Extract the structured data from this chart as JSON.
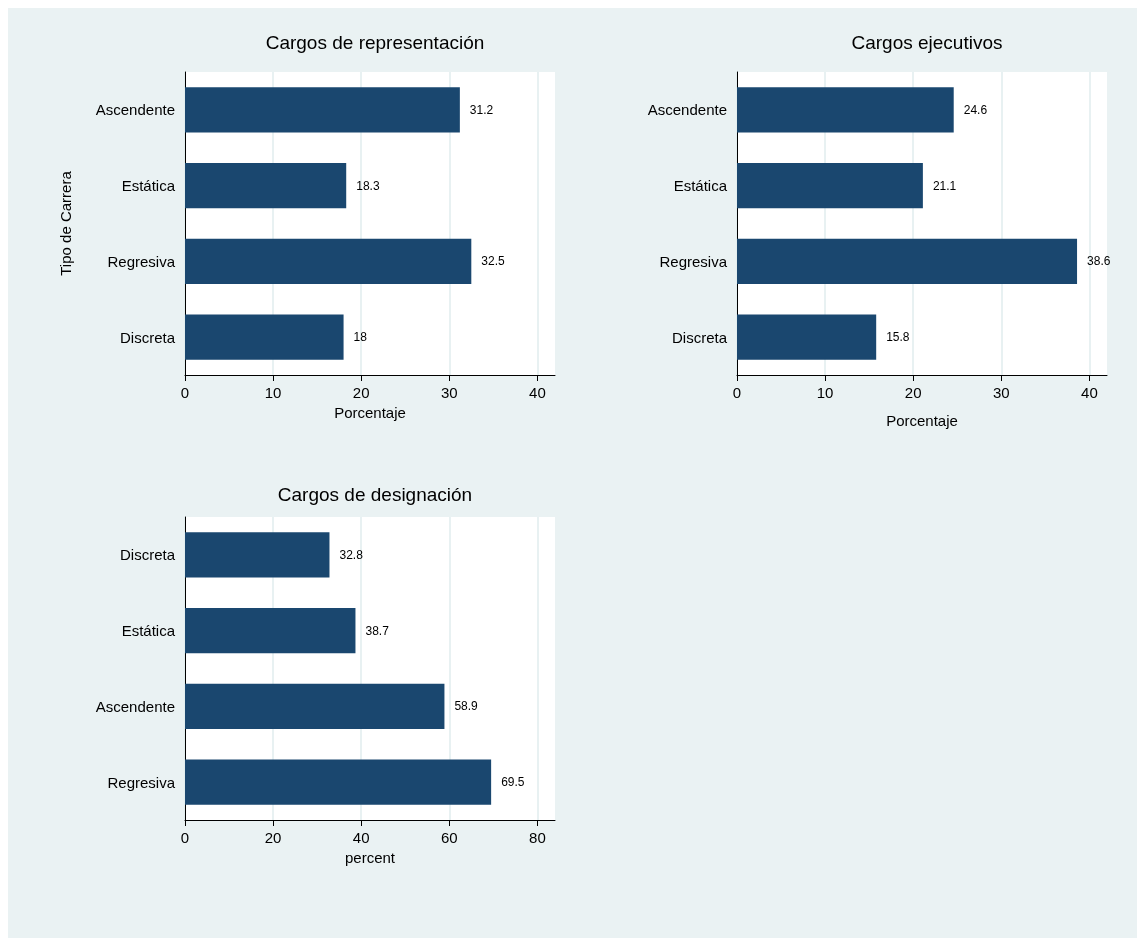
{
  "chart_data": [
    {
      "type": "bar",
      "orientation": "horizontal",
      "title": "Cargos de representación",
      "xlabel": "Porcentaje",
      "ylabel": "Tipo de Carrera",
      "categories": [
        "Ascendente",
        "Estática",
        "Regresiva",
        "Discreta"
      ],
      "values": [
        31.2,
        18.3,
        32.5,
        18
      ],
      "color": "#1a476f",
      "xlim": [
        0,
        42
      ],
      "xticks": [
        0,
        10,
        20,
        30,
        40
      ],
      "grid": "x",
      "data_labels": true
    },
    {
      "type": "bar",
      "orientation": "horizontal",
      "title": "Cargos ejecutivos",
      "xlabel": "Porcentaje",
      "categories": [
        "Ascendente",
        "Estática",
        "Regresiva",
        "Discreta"
      ],
      "values": [
        24.6,
        21.1,
        38.6,
        15.8
      ],
      "color": "#1a476f",
      "xlim": [
        0,
        42
      ],
      "xticks": [
        0,
        10,
        20,
        30,
        40
      ],
      "grid": "x",
      "data_labels": true
    },
    {
      "type": "bar",
      "orientation": "horizontal",
      "title": "Cargos de designación",
      "xlabel": "percent",
      "categories": [
        "Discreta",
        "Estática",
        "Ascendente",
        "Regresiva"
      ],
      "values": [
        32.8,
        38.7,
        58.9,
        69.5
      ],
      "color": "#1a476f",
      "xlim": [
        0,
        84
      ],
      "xticks": [
        0,
        20,
        40,
        60,
        80
      ],
      "grid": "x",
      "data_labels": true
    }
  ]
}
